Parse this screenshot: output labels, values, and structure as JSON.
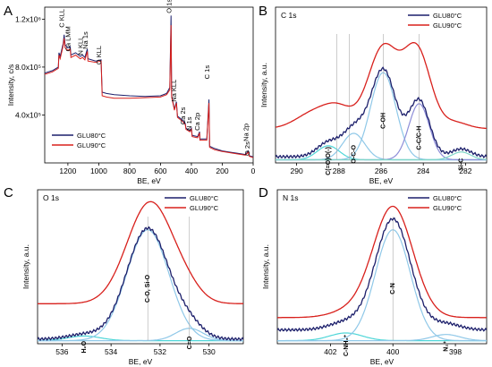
{
  "colors": {
    "dark_blue": "#1c1f6b",
    "red": "#d8201c",
    "light_blue": "#8fc8e8",
    "cyan": "#4fd6d8",
    "lavender": "#8e8ed8",
    "green_blue": "#7fd6c8",
    "guide": "#aaaaaa"
  },
  "chart_data": [
    {
      "panel": "A",
      "type": "line",
      "title": "",
      "xlabel": "BE, eV",
      "ylabel": "Intensity, c/s",
      "xlim": [
        1350,
        0
      ],
      "ylim": [
        0,
        1300000
      ],
      "x_ticks": [
        1200,
        1000,
        800,
        600,
        400,
        200,
        0
      ],
      "y_ticks": [
        {
          "v": 400000,
          "label": "4.0x10⁵"
        },
        {
          "v": 800000,
          "label": "8.0x10⁵"
        },
        {
          "v": 1200000,
          "label": "1.2x10⁶"
        }
      ],
      "legend": [
        "GLU80°C",
        "GLU90°C"
      ],
      "legend_position": "bottom-left",
      "annotations": [
        {
          "text": "C KLL",
          "x": 1225,
          "y": 1130000,
          "rot": -90
        },
        {
          "text": "Ca LMM",
          "x": 1185,
          "y": 930000,
          "rot": -90
        },
        {
          "text": "N KLL",
          "x": 1105,
          "y": 900000,
          "rot": -90
        },
        {
          "text": "Na 1s",
          "x": 1072,
          "y": 950000,
          "rot": -90
        },
        {
          "text": "O KLL",
          "x": 985,
          "y": 820000,
          "rot": -90
        },
        {
          "text": "O 1s",
          "x": 531,
          "y": 1250000,
          "rot": -90
        },
        {
          "text": "Na KLL",
          "x": 497,
          "y": 510000,
          "rot": -90
        },
        {
          "text": "Ca 2s",
          "x": 440,
          "y": 320000,
          "rot": -90
        },
        {
          "text": "N 1s",
          "x": 400,
          "y": 270000,
          "rot": -90
        },
        {
          "text": "Ca 2p",
          "x": 347,
          "y": 270000,
          "rot": -90
        },
        {
          "text": "C 1s",
          "x": 285,
          "y": 700000,
          "rot": -90
        },
        {
          "text": "Na 2p",
          "x": 31,
          "y": 180000,
          "rot": -90
        },
        {
          "text": "O 2s",
          "x": 23,
          "y": 60000,
          "rot": -90
        }
      ],
      "series": [
        {
          "name": "GLU80°C",
          "color": "dark_blue",
          "points": [
            [
              1350,
              750000
            ],
            [
              1300,
              770000
            ],
            [
              1262,
              800000
            ],
            [
              1258,
              920000
            ],
            [
              1250,
              890000
            ],
            [
              1230,
              1000000
            ],
            [
              1224,
              1070000
            ],
            [
              1218,
              985000
            ],
            [
              1200,
              960000
            ],
            [
              1185,
              970000
            ],
            [
              1180,
              900000
            ],
            [
              1150,
              920000
            ],
            [
              1120,
              890000
            ],
            [
              1105,
              900000
            ],
            [
              1090,
              880000
            ],
            [
              1074,
              950000
            ],
            [
              1070,
              870000
            ],
            [
              1020,
              850000
            ],
            [
              985,
              860000
            ],
            [
              978,
              590000
            ],
            [
              950,
              580000
            ],
            [
              900,
              570000
            ],
            [
              800,
              560000
            ],
            [
              700,
              555000
            ],
            [
              600,
              560000
            ],
            [
              560,
              580000
            ],
            [
              540,
              630000
            ],
            [
              532,
              1230000
            ],
            [
              528,
              560000
            ],
            [
              510,
              450000
            ],
            [
              497,
              510000
            ],
            [
              490,
              390000
            ],
            [
              460,
              360000
            ],
            [
              440,
              330000
            ],
            [
              435,
              290000
            ],
            [
              410,
              270000
            ],
            [
              400,
              290000
            ],
            [
              395,
              230000
            ],
            [
              360,
              220000
            ],
            [
              347,
              260000
            ],
            [
              345,
              200000
            ],
            [
              300,
              200000
            ],
            [
              286,
              530000
            ],
            [
              282,
              140000
            ],
            [
              250,
              120000
            ],
            [
              200,
              100000
            ],
            [
              150,
              90000
            ],
            [
              100,
              80000
            ],
            [
              50,
              70000
            ],
            [
              31,
              100000
            ],
            [
              25,
              60000
            ],
            [
              0,
              50000
            ]
          ]
        },
        {
          "name": "GLU90°C",
          "color": "red",
          "points": [
            [
              1350,
              740000
            ],
            [
              1300,
              760000
            ],
            [
              1262,
              790000
            ],
            [
              1258,
              900000
            ],
            [
              1250,
              870000
            ],
            [
              1230,
              980000
            ],
            [
              1224,
              1040000
            ],
            [
              1218,
              960000
            ],
            [
              1200,
              940000
            ],
            [
              1185,
              950000
            ],
            [
              1180,
              880000
            ],
            [
              1150,
              900000
            ],
            [
              1120,
              870000
            ],
            [
              1105,
              880000
            ],
            [
              1090,
              860000
            ],
            [
              1074,
              930000
            ],
            [
              1070,
              850000
            ],
            [
              1020,
              840000
            ],
            [
              985,
              850000
            ],
            [
              978,
              560000
            ],
            [
              950,
              550000
            ],
            [
              900,
              540000
            ],
            [
              800,
              540000
            ],
            [
              700,
              545000
            ],
            [
              600,
              550000
            ],
            [
              560,
              570000
            ],
            [
              540,
              610000
            ],
            [
              532,
              1150000
            ],
            [
              528,
              550000
            ],
            [
              510,
              440000
            ],
            [
              497,
              500000
            ],
            [
              490,
              380000
            ],
            [
              460,
              350000
            ],
            [
              440,
              320000
            ],
            [
              435,
              280000
            ],
            [
              410,
              260000
            ],
            [
              400,
              280000
            ],
            [
              395,
              220000
            ],
            [
              360,
              210000
            ],
            [
              347,
              250000
            ],
            [
              345,
              190000
            ],
            [
              300,
              190000
            ],
            [
              286,
              500000
            ],
            [
              282,
              130000
            ],
            [
              250,
              110000
            ],
            [
              200,
              95000
            ],
            [
              150,
              85000
            ],
            [
              100,
              75000
            ],
            [
              50,
              65000
            ],
            [
              31,
              90000
            ],
            [
              25,
              55000
            ],
            [
              0,
              45000
            ]
          ]
        }
      ]
    },
    {
      "panel": "B",
      "type": "line",
      "title": "C 1s",
      "xlabel": "BE, eV",
      "ylabel": "Intensity, a.u.",
      "xlim": [
        291,
        281
      ],
      "ylim": [
        0,
        1.0
      ],
      "x_ticks": [
        290,
        288,
        286,
        284,
        282
      ],
      "legend": [
        "GLU80°C",
        "GLU90°C"
      ],
      "legend_position": "top-right",
      "peaks": [
        {
          "label": "C(=O)O(-)",
          "center": 288.5,
          "height": 0.09,
          "width": 0.7,
          "color": "cyan"
        },
        {
          "label": "O-C-O",
          "center": 287.3,
          "height": 0.17,
          "width": 0.7,
          "color": "light_blue"
        },
        {
          "label": "C-OH",
          "center": 285.9,
          "height": 0.56,
          "width": 0.8,
          "color": "light_blue"
        },
        {
          "label": "C-C/C-H",
          "center": 284.2,
          "height": 0.36,
          "width": 0.65,
          "color": "lavender"
        },
        {
          "label": "Si-C",
          "center": 282.2,
          "height": 0.05,
          "width": 0.6,
          "color": "green_blue"
        }
      ],
      "guides": [
        288.1,
        287.5,
        285.9,
        284.2
      ],
      "series": [
        {
          "name": "GLU80°C",
          "color": "dark_blue",
          "envelope_of_peaks": true,
          "offset": 0.04
        },
        {
          "name": "GLU90°C",
          "color": "red",
          "components": [
            [
              289.2,
              0.1,
              1.1
            ],
            [
              288.0,
              0.12,
              0.9
            ],
            [
              285.9,
              0.52,
              0.95
            ],
            [
              284.3,
              0.5,
              0.85
            ],
            [
              282.5,
              0.04,
              0.8
            ]
          ],
          "offset": 0.22
        }
      ]
    },
    {
      "panel": "C",
      "type": "line",
      "title": "O 1s",
      "xlabel": "BE, eV",
      "ylabel": "Intensity, a.u.",
      "xlim": [
        537,
        528.6
      ],
      "ylim": [
        0,
        1.0
      ],
      "x_ticks": [
        536,
        534,
        532,
        530
      ],
      "legend": [
        "GLU80°C",
        "GLU90°C"
      ],
      "legend_position": "top-right",
      "peaks": [
        {
          "label": "H₂O",
          "center": 535.1,
          "height": 0.03,
          "width": 0.9,
          "color": "cyan"
        },
        {
          "label": "C-O, Si-O",
          "center": 532.5,
          "height": 0.72,
          "width": 1.15,
          "color": "light_blue"
        },
        {
          "label": "C=O",
          "center": 530.8,
          "height": 0.08,
          "width": 0.75,
          "color": "light_blue"
        }
      ],
      "guides": [
        532.5,
        530.8
      ],
      "series": [
        {
          "name": "GLU80°C",
          "color": "dark_blue",
          "envelope_of_peaks": true,
          "offset": 0.03
        },
        {
          "name": "GLU90°C",
          "color": "red",
          "components": [
            [
              532.4,
              0.66,
              1.25
            ],
            [
              530.9,
              0.06,
              0.8
            ]
          ],
          "offset": 0.26
        }
      ]
    },
    {
      "panel": "D",
      "type": "line",
      "title": "N 1s",
      "xlabel": "BE, eV",
      "ylabel": "Intensity, a.u.",
      "xlim": [
        403.7,
        397.0
      ],
      "ylim": [
        0,
        1.0
      ],
      "x_ticks": [
        402,
        400,
        398
      ],
      "legend": [
        "GLU80°C",
        "GLU90°C"
      ],
      "legend_position": "top-right",
      "peaks": [
        {
          "label": "C-NH₃⁺",
          "center": 401.5,
          "height": 0.05,
          "width": 0.7,
          "color": "cyan"
        },
        {
          "label": "C-N",
          "center": 400.0,
          "height": 0.72,
          "width": 0.75,
          "color": "light_blue"
        },
        {
          "label": "N₂⁺",
          "center": 398.3,
          "height": 0.04,
          "width": 0.6,
          "color": "light_blue"
        }
      ],
      "guides": [
        400.0
      ],
      "series": [
        {
          "name": "GLU80°C",
          "color": "dark_blue",
          "envelope_of_peaks": true,
          "offset": 0.09
        },
        {
          "name": "GLU90°C",
          "color": "red",
          "components": [
            [
              400.0,
              0.72,
              0.85
            ],
            [
              401.4,
              0.04,
              0.8
            ]
          ],
          "offset": 0.17
        }
      ]
    }
  ]
}
